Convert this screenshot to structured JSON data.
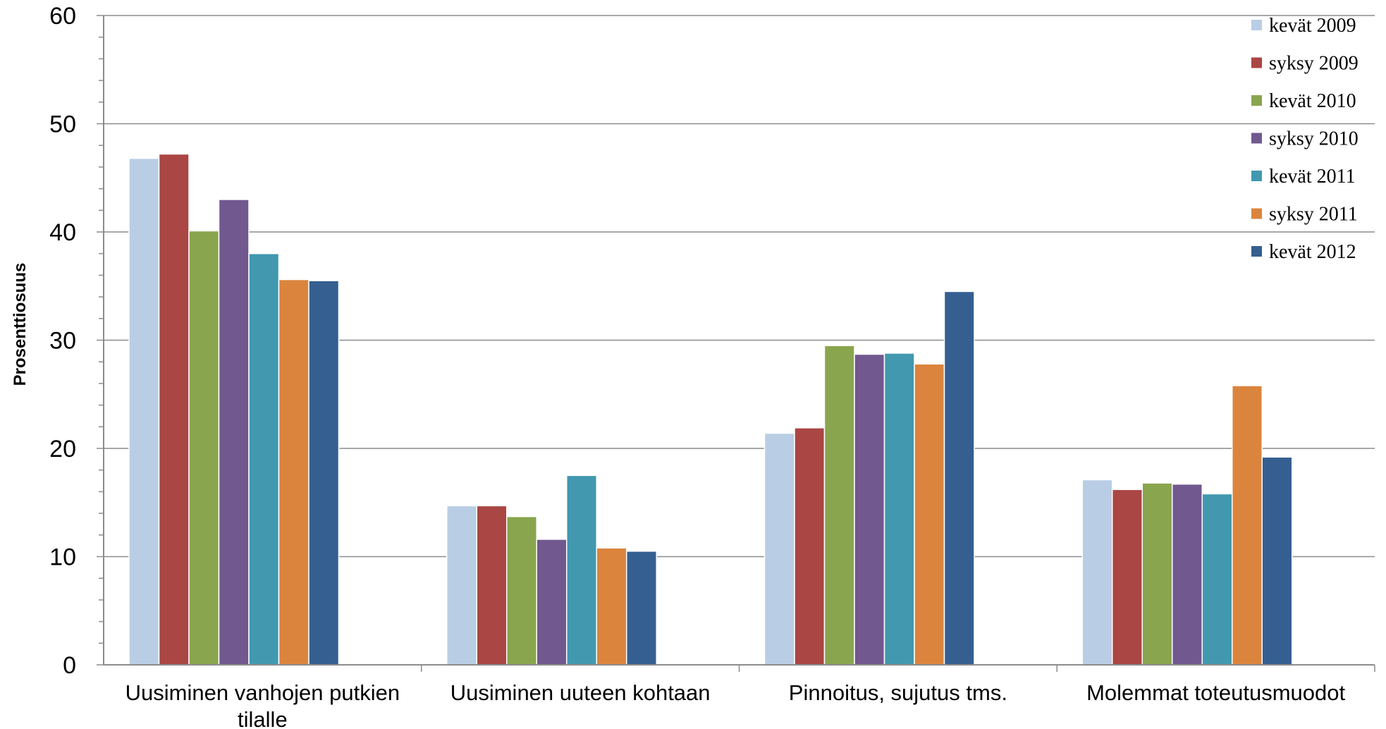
{
  "chart_data": {
    "type": "bar",
    "title": "",
    "xlabel": "",
    "ylabel": "Prosenttiosuus",
    "ylim": [
      0,
      60
    ],
    "yticks": [
      0,
      10,
      20,
      30,
      40,
      50,
      60
    ],
    "grid": true,
    "legend_position": "top-right",
    "categories": [
      [
        "Uusiminen vanhojen putkien",
        "tilalle"
      ],
      [
        "Uusiminen uuteen kohtaan"
      ],
      [
        "Pinnoitus, sujutus tms."
      ],
      [
        "Molemmat toteutusmuodot"
      ]
    ],
    "series": [
      {
        "name": "kevät 2009",
        "color": "#b9cde5",
        "values": [
          46.8,
          14.7,
          21.4,
          17.1
        ]
      },
      {
        "name": "syksy 2009",
        "color": "#aa4643",
        "values": [
          47.2,
          14.7,
          21.9,
          16.2
        ]
      },
      {
        "name": "kevät 2010",
        "color": "#89a54e",
        "values": [
          40.1,
          13.7,
          29.5,
          16.8
        ]
      },
      {
        "name": "syksy 2010",
        "color": "#71588f",
        "values": [
          43.0,
          11.6,
          28.7,
          16.7
        ]
      },
      {
        "name": "kevät 2011",
        "color": "#4198af",
        "values": [
          38.0,
          17.5,
          28.8,
          15.8
        ]
      },
      {
        "name": "syksy 2011",
        "color": "#db843d",
        "values": [
          35.6,
          10.8,
          27.8,
          25.8
        ]
      },
      {
        "name": "kevät 2012",
        "color": "#355f91",
        "values": [
          35.5,
          10.5,
          34.5,
          19.2
        ]
      }
    ]
  }
}
